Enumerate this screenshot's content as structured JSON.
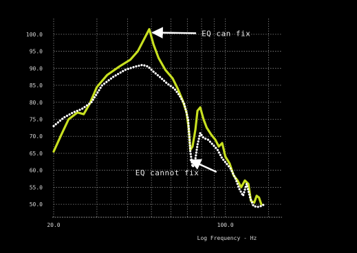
{
  "chart_data": {
    "type": "line",
    "title": "",
    "xlabel": "Log Frequency - Hz",
    "ylabel": "",
    "x_scale": "log",
    "xlim": [
      20,
      170
    ],
    "ylim": [
      47,
      103
    ],
    "grid": true,
    "x_ticks": [
      20,
      100
    ],
    "x_tick_labels": [
      "20.0",
      "100.0"
    ],
    "y_ticks": [
      50,
      55,
      60,
      65,
      70,
      75,
      80,
      85,
      90,
      95,
      100
    ],
    "y_tick_labels": [
      "50.0",
      "55.0",
      "60.0",
      "65.0",
      "70.0",
      "75.0",
      "80.0",
      "85.0",
      "90.0",
      "95.0",
      "100.0"
    ],
    "series": [
      {
        "color": "#c8e020",
        "style": "solid",
        "points": [
          [
            20.0,
            65.5
          ],
          [
            21.5,
            70.5
          ],
          [
            23.0,
            75.0
          ],
          [
            25.0,
            77.0
          ],
          [
            26.5,
            76.5
          ],
          [
            28.0,
            79.5
          ],
          [
            30.0,
            84.5
          ],
          [
            33.0,
            88.0
          ],
          [
            37.0,
            90.5
          ],
          [
            41.0,
            92.5
          ],
          [
            44.0,
            95.0
          ],
          [
            47.0,
            99.0
          ],
          [
            49.0,
            101.5
          ],
          [
            51.0,
            97.0
          ],
          [
            53.5,
            93.0
          ],
          [
            57.0,
            89.5
          ],
          [
            61.0,
            87.0
          ],
          [
            64.0,
            84.0
          ],
          [
            67.0,
            80.5
          ],
          [
            69.5,
            77.0
          ],
          [
            71.0,
            72.0
          ],
          [
            72.0,
            66.0
          ],
          [
            73.5,
            67.0
          ],
          [
            75.5,
            72.0
          ],
          [
            77.0,
            77.5
          ],
          [
            79.0,
            78.5
          ],
          [
            81.5,
            75.0
          ],
          [
            84.0,
            72.5
          ],
          [
            87.5,
            70.5
          ],
          [
            91.0,
            69.0
          ],
          [
            94.0,
            67.0
          ],
          [
            97.0,
            68.0
          ],
          [
            100.0,
            64.0
          ],
          [
            104.0,
            62.0
          ],
          [
            108.0,
            58.5
          ],
          [
            112.0,
            57.0
          ],
          [
            116.0,
            55.0
          ],
          [
            120.0,
            57.0
          ],
          [
            124.0,
            56.0
          ],
          [
            127.0,
            51.0
          ],
          [
            131.0,
            50.5
          ],
          [
            134.0,
            52.5
          ],
          [
            137.0,
            52.0
          ],
          [
            140.0,
            50.0
          ]
        ]
      },
      {
        "color": "#ffffff",
        "style": "dotted",
        "points": [
          [
            20.0,
            73.0
          ],
          [
            22.0,
            75.5
          ],
          [
            24.0,
            77.0
          ],
          [
            26.0,
            78.0
          ],
          [
            28.5,
            80.0
          ],
          [
            31.5,
            85.0
          ],
          [
            35.0,
            87.5
          ],
          [
            39.0,
            89.5
          ],
          [
            43.0,
            90.5
          ],
          [
            46.0,
            91.0
          ],
          [
            48.5,
            90.5
          ],
          [
            51.0,
            89.0
          ],
          [
            54.0,
            87.5
          ],
          [
            58.0,
            85.5
          ],
          [
            62.0,
            84.0
          ],
          [
            65.0,
            82.0
          ],
          [
            68.0,
            79.5
          ],
          [
            70.5,
            75.0
          ],
          [
            72.0,
            65.5
          ],
          [
            73.5,
            61.0
          ],
          [
            75.0,
            62.0
          ],
          [
            77.0,
            67.5
          ],
          [
            79.0,
            71.0
          ],
          [
            81.5,
            69.5
          ],
          [
            85.0,
            69.0
          ],
          [
            89.0,
            67.5
          ],
          [
            93.0,
            66.0
          ],
          [
            97.0,
            63.5
          ],
          [
            101.0,
            62.0
          ],
          [
            105.0,
            60.5
          ],
          [
            110.0,
            57.5
          ],
          [
            114.0,
            54.5
          ],
          [
            118.0,
            52.5
          ],
          [
            122.0,
            56.0
          ],
          [
            126.0,
            52.0
          ],
          [
            130.0,
            49.5
          ],
          [
            135.0,
            49.2
          ],
          [
            140.0,
            49.5
          ],
          [
            144.0,
            50.0
          ]
        ]
      }
    ],
    "annotations": [
      {
        "text": "EQ can fix",
        "x": 80,
        "y": 99.5,
        "arrow_to": [
          50.5,
          100.5
        ]
      },
      {
        "text": "EQ cannot fix",
        "x": 43,
        "y": 58.5,
        "arrow_to": [
          72.0,
          63.0
        ]
      }
    ]
  }
}
